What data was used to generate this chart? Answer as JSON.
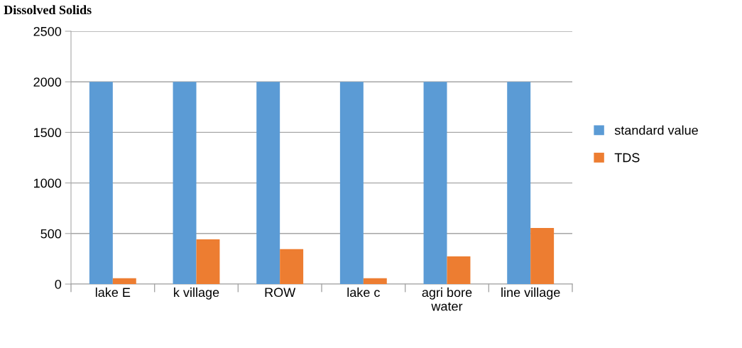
{
  "chart_data": {
    "type": "bar",
    "title": "Dissolved Solids",
    "categories": [
      "lake E",
      "k village",
      "ROW",
      "lake c",
      "agri bore\nwater",
      "line village"
    ],
    "series": [
      {
        "name": "standard value",
        "color": "#5b9bd5",
        "values": [
          2000,
          2000,
          2000,
          2000,
          2000,
          2000
        ]
      },
      {
        "name": "TDS",
        "color": "#ed7d31",
        "values": [
          58,
          442,
          345,
          58,
          274,
          555
        ]
      }
    ],
    "ylim": [
      0,
      2500
    ],
    "yticks": [
      0,
      500,
      1000,
      1500,
      2000,
      2500
    ],
    "grid": "y",
    "legend": "right"
  }
}
